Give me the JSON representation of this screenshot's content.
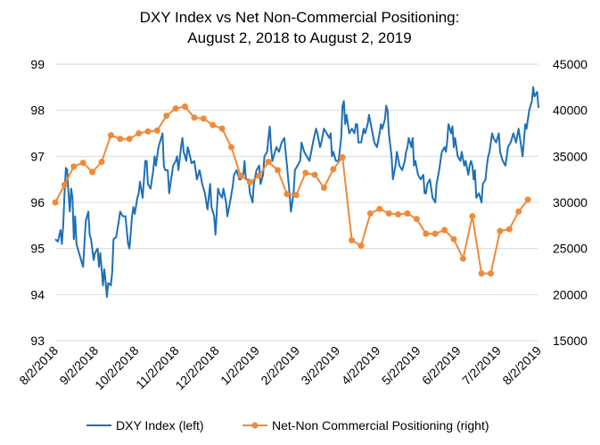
{
  "chart_data": {
    "type": "line",
    "title": [
      "DXY Index vs Net Non-Commercial Positioning:",
      "August 2, 2018 to August 2, 2019"
    ],
    "x_ticks": [
      "8/2/2018",
      "9/2/2018",
      "10/2/2018",
      "11/2/2018",
      "12/2/2018",
      "1/2/2019",
      "2/2/2019",
      "3/2/2019",
      "4/2/2019",
      "5/2/2019",
      "6/2/2019",
      "7/2/2019",
      "8/2/2019"
    ],
    "x_range_days": [
      0,
      365
    ],
    "grid": "horizontal",
    "left_axis": {
      "ticks": [
        "93",
        "94",
        "95",
        "96",
        "97",
        "98",
        "99"
      ],
      "range": [
        93,
        99
      ]
    },
    "right_axis": {
      "ticks": [
        "15000",
        "20000",
        "25000",
        "30000",
        "35000",
        "40000",
        "45000"
      ],
      "range": [
        15000,
        45000
      ]
    },
    "legend_position": "bottom",
    "series": [
      {
        "name": "DXY Index (left)",
        "axis": "left",
        "color": "#1f6fb5",
        "markers": false,
        "points": [
          [
            0,
            95.2
          ],
          [
            2,
            95.15
          ],
          [
            4,
            95.4
          ],
          [
            5,
            95.1
          ],
          [
            6,
            95.5
          ],
          [
            7,
            96.2
          ],
          [
            8,
            96.75
          ],
          [
            9,
            96.7
          ],
          [
            10,
            96.2
          ],
          [
            11,
            95.8
          ],
          [
            12,
            96.3
          ],
          [
            13,
            96.1
          ],
          [
            14,
            95.2
          ],
          [
            15,
            95.7
          ],
          [
            16,
            95.1
          ],
          [
            17,
            95.0
          ],
          [
            19,
            94.8
          ],
          [
            21,
            94.6
          ],
          [
            22,
            95.1
          ],
          [
            23,
            95.6
          ],
          [
            25,
            95.8
          ],
          [
            26,
            95.3
          ],
          [
            27,
            95.2
          ],
          [
            29,
            94.75
          ],
          [
            30,
            94.9
          ],
          [
            32,
            95.0
          ],
          [
            33,
            94.6
          ],
          [
            34,
            94.9
          ],
          [
            36,
            94.2
          ],
          [
            37,
            94.55
          ],
          [
            38,
            94.3
          ],
          [
            39,
            93.95
          ],
          [
            40,
            94.25
          ],
          [
            42,
            94.2
          ],
          [
            43,
            94.5
          ],
          [
            44,
            95.2
          ],
          [
            46,
            95.25
          ],
          [
            48,
            95.6
          ],
          [
            49,
            95.8
          ],
          [
            51,
            95.7
          ],
          [
            53,
            95.7
          ],
          [
            54,
            95.4
          ],
          [
            55,
            95.1
          ],
          [
            56,
            95.0
          ],
          [
            58,
            95.7
          ],
          [
            59,
            95.9
          ],
          [
            60,
            95.75
          ],
          [
            62,
            96.1
          ],
          [
            63,
            96.2
          ],
          [
            64,
            96.45
          ],
          [
            66,
            96.1
          ],
          [
            68,
            96.9
          ],
          [
            69,
            96.9
          ],
          [
            70,
            96.4
          ],
          [
            72,
            96.3
          ],
          [
            74,
            96.7
          ],
          [
            75,
            97.0
          ],
          [
            76,
            96.8
          ],
          [
            78,
            97.2
          ],
          [
            80,
            97.4
          ],
          [
            81,
            97.5
          ],
          [
            82,
            96.8
          ],
          [
            83,
            96.7
          ],
          [
            85,
            96.7
          ],
          [
            86,
            96.2
          ],
          [
            87,
            96.4
          ],
          [
            89,
            96.8
          ],
          [
            91,
            96.9
          ],
          [
            92,
            97.0
          ],
          [
            93,
            96.7
          ],
          [
            95,
            97.2
          ],
          [
            96,
            97.4
          ],
          [
            97,
            97.1
          ],
          [
            99,
            96.9
          ],
          [
            100,
            97.2
          ],
          [
            101,
            97.1
          ],
          [
            103,
            96.85
          ],
          [
            105,
            96.9
          ],
          [
            107,
            96.5
          ],
          [
            109,
            96.7
          ],
          [
            111,
            96.4
          ],
          [
            113,
            96.2
          ],
          [
            115,
            95.85
          ],
          [
            117,
            96.4
          ],
          [
            118,
            95.9
          ],
          [
            120,
            95.7
          ],
          [
            121,
            95.3
          ],
          [
            123,
            96.3
          ],
          [
            124,
            96.2
          ],
          [
            126,
            96.1
          ],
          [
            127,
            96.3
          ],
          [
            129,
            96.0
          ],
          [
            130,
            95.7
          ],
          [
            132,
            96.0
          ],
          [
            134,
            96.35
          ],
          [
            135,
            96.6
          ],
          [
            137,
            96.7
          ],
          [
            139,
            96.5
          ],
          [
            140,
            96.5
          ],
          [
            142,
            96.6
          ],
          [
            143,
            96.9
          ],
          [
            144,
            96.5
          ],
          [
            146,
            96.5
          ],
          [
            147,
            96.2
          ],
          [
            149,
            96.0
          ],
          [
            150,
            96.4
          ],
          [
            152,
            96.7
          ],
          [
            154,
            96.8
          ],
          [
            155,
            96.4
          ],
          [
            157,
            96.6
          ],
          [
            158,
            97.0
          ],
          [
            160,
            97.1
          ],
          [
            161,
            97.4
          ],
          [
            162,
            97.65
          ],
          [
            163,
            97.2
          ],
          [
            164,
            96.9
          ],
          [
            166,
            97.1
          ],
          [
            167,
            97.2
          ],
          [
            169,
            97.1
          ],
          [
            171,
            97.3
          ],
          [
            173,
            97.4
          ],
          [
            175,
            96.8
          ],
          [
            176,
            96.5
          ],
          [
            177,
            96.2
          ],
          [
            178,
            95.8
          ],
          [
            180,
            96.2
          ],
          [
            181,
            96.7
          ],
          [
            183,
            96.8
          ],
          [
            185,
            96.9
          ],
          [
            186,
            97.3
          ],
          [
            188,
            97.1
          ],
          [
            190,
            97.0
          ],
          [
            192,
            96.9
          ],
          [
            194,
            97.2
          ],
          [
            195,
            97.35
          ],
          [
            197,
            97.6
          ],
          [
            198,
            97.5
          ],
          [
            200,
            97.2
          ],
          [
            201,
            97.3
          ],
          [
            203,
            97.6
          ],
          [
            205,
            97.5
          ],
          [
            207,
            97.4
          ],
          [
            208,
            97.5
          ],
          [
            209,
            97.0
          ],
          [
            210,
            97.1
          ],
          [
            212,
            96.9
          ],
          [
            214,
            96.9
          ],
          [
            216,
            97.4
          ],
          [
            217,
            98.1
          ],
          [
            218,
            98.2
          ],
          [
            219,
            97.7
          ],
          [
            220,
            97.9
          ],
          [
            222,
            97.5
          ],
          [
            224,
            97.6
          ],
          [
            226,
            97.5
          ],
          [
            227,
            97.7
          ],
          [
            228,
            97.7
          ],
          [
            229,
            97.3
          ],
          [
            231,
            97.3
          ],
          [
            233,
            97.6
          ],
          [
            234,
            97.5
          ],
          [
            236,
            97.7
          ],
          [
            237,
            97.9
          ],
          [
            239,
            97.6
          ],
          [
            241,
            97.3
          ],
          [
            243,
            97.2
          ],
          [
            245,
            97.5
          ],
          [
            246,
            97.7
          ],
          [
            247,
            97.6
          ],
          [
            249,
            97.8
          ],
          [
            250,
            98.1
          ],
          [
            251,
            98.0
          ],
          [
            252,
            97.5
          ],
          [
            254,
            97.0
          ],
          [
            255,
            96.5
          ],
          [
            257,
            96.8
          ],
          [
            258,
            97.1
          ],
          [
            260,
            96.8
          ],
          [
            262,
            96.7
          ],
          [
            264,
            96.9
          ],
          [
            265,
            97.1
          ],
          [
            266,
            97.2
          ],
          [
            267,
            97.4
          ],
          [
            269,
            97.2
          ],
          [
            270,
            97.4
          ],
          [
            271,
            96.8
          ],
          [
            272,
            96.9
          ],
          [
            274,
            96.6
          ],
          [
            276,
            96.5
          ],
          [
            278,
            96.6
          ],
          [
            279,
            96.2
          ],
          [
            280,
            96.2
          ],
          [
            281,
            96.4
          ],
          [
            283,
            96.5
          ],
          [
            284,
            96.3
          ],
          [
            285,
            96.1
          ],
          [
            287,
            96.0
          ],
          [
            288,
            96.4
          ],
          [
            290,
            96.7
          ],
          [
            292,
            97.1
          ],
          [
            294,
            97.2
          ],
          [
            295,
            97.1
          ],
          [
            296,
            97.3
          ],
          [
            297,
            97.7
          ],
          [
            299,
            97.5
          ],
          [
            300,
            97.65
          ],
          [
            301,
            97.2
          ],
          [
            302,
            97.4
          ],
          [
            304,
            97.0
          ],
          [
            306,
            96.9
          ],
          [
            307,
            97.1
          ],
          [
            309,
            96.8
          ],
          [
            310,
            96.9
          ],
          [
            312,
            96.6
          ],
          [
            313,
            96.8
          ],
          [
            314,
            96.9
          ],
          [
            315,
            96.8
          ],
          [
            316,
            96.5
          ],
          [
            317,
            96.7
          ],
          [
            318,
            96.1
          ],
          [
            320,
            96.2
          ],
          [
            322,
            96.0
          ],
          [
            323,
            96.4
          ],
          [
            325,
            96.5
          ],
          [
            326,
            96.8
          ],
          [
            327,
            97.0
          ],
          [
            328,
            97.1
          ],
          [
            330,
            97.5
          ],
          [
            331,
            97.4
          ],
          [
            333,
            97.3
          ],
          [
            335,
            97.5
          ],
          [
            336,
            97.1
          ],
          [
            338,
            96.9
          ],
          [
            340,
            96.8
          ],
          [
            341,
            97.0
          ],
          [
            342,
            97.2
          ],
          [
            344,
            97.3
          ],
          [
            346,
            97.5
          ],
          [
            348,
            97.3
          ],
          [
            350,
            97.6
          ],
          [
            352,
            97.2
          ],
          [
            353,
            97.0
          ],
          [
            355,
            97.7
          ],
          [
            356,
            97.6
          ],
          [
            358,
            98.0
          ],
          [
            360,
            98.2
          ],
          [
            361,
            98.5
          ],
          [
            362,
            98.3
          ],
          [
            364,
            98.4
          ],
          [
            365,
            98.05
          ]
        ]
      },
      {
        "name": "Net-Non Commercial Positioning (right)",
        "axis": "right",
        "color": "#ee8a3a",
        "markers": true,
        "points": [
          [
            0,
            30000
          ],
          [
            7,
            31900
          ],
          [
            14,
            33900
          ],
          [
            21,
            34300
          ],
          [
            28,
            33300
          ],
          [
            35,
            34400
          ],
          [
            42,
            37300
          ],
          [
            49,
            36900
          ],
          [
            56,
            36900
          ],
          [
            63,
            37500
          ],
          [
            70,
            37700
          ],
          [
            77,
            37800
          ],
          [
            84,
            39400
          ],
          [
            91,
            40200
          ],
          [
            98,
            40400
          ],
          [
            105,
            39200
          ],
          [
            112,
            39100
          ],
          [
            119,
            38400
          ],
          [
            126,
            38000
          ],
          [
            133,
            36000
          ],
          [
            140,
            32900
          ],
          [
            147,
            32200
          ],
          [
            154,
            32900
          ],
          [
            161,
            34400
          ],
          [
            168,
            33500
          ],
          [
            175,
            30900
          ],
          [
            182,
            30800
          ],
          [
            189,
            33200
          ],
          [
            196,
            33000
          ],
          [
            203,
            31600
          ],
          [
            210,
            33600
          ],
          [
            217,
            34900
          ],
          [
            224,
            25900
          ],
          [
            231,
            25300
          ],
          [
            238,
            28800
          ],
          [
            245,
            29300
          ],
          [
            252,
            28800
          ],
          [
            259,
            28700
          ],
          [
            266,
            28800
          ],
          [
            273,
            28200
          ],
          [
            280,
            26600
          ],
          [
            287,
            26600
          ],
          [
            294,
            27000
          ],
          [
            301,
            26000
          ],
          [
            308,
            23900
          ],
          [
            315,
            28500
          ],
          [
            322,
            22300
          ],
          [
            329,
            22300
          ],
          [
            336,
            26900
          ],
          [
            343,
            27100
          ],
          [
            350,
            29000
          ],
          [
            357,
            30300
          ]
        ]
      }
    ]
  }
}
